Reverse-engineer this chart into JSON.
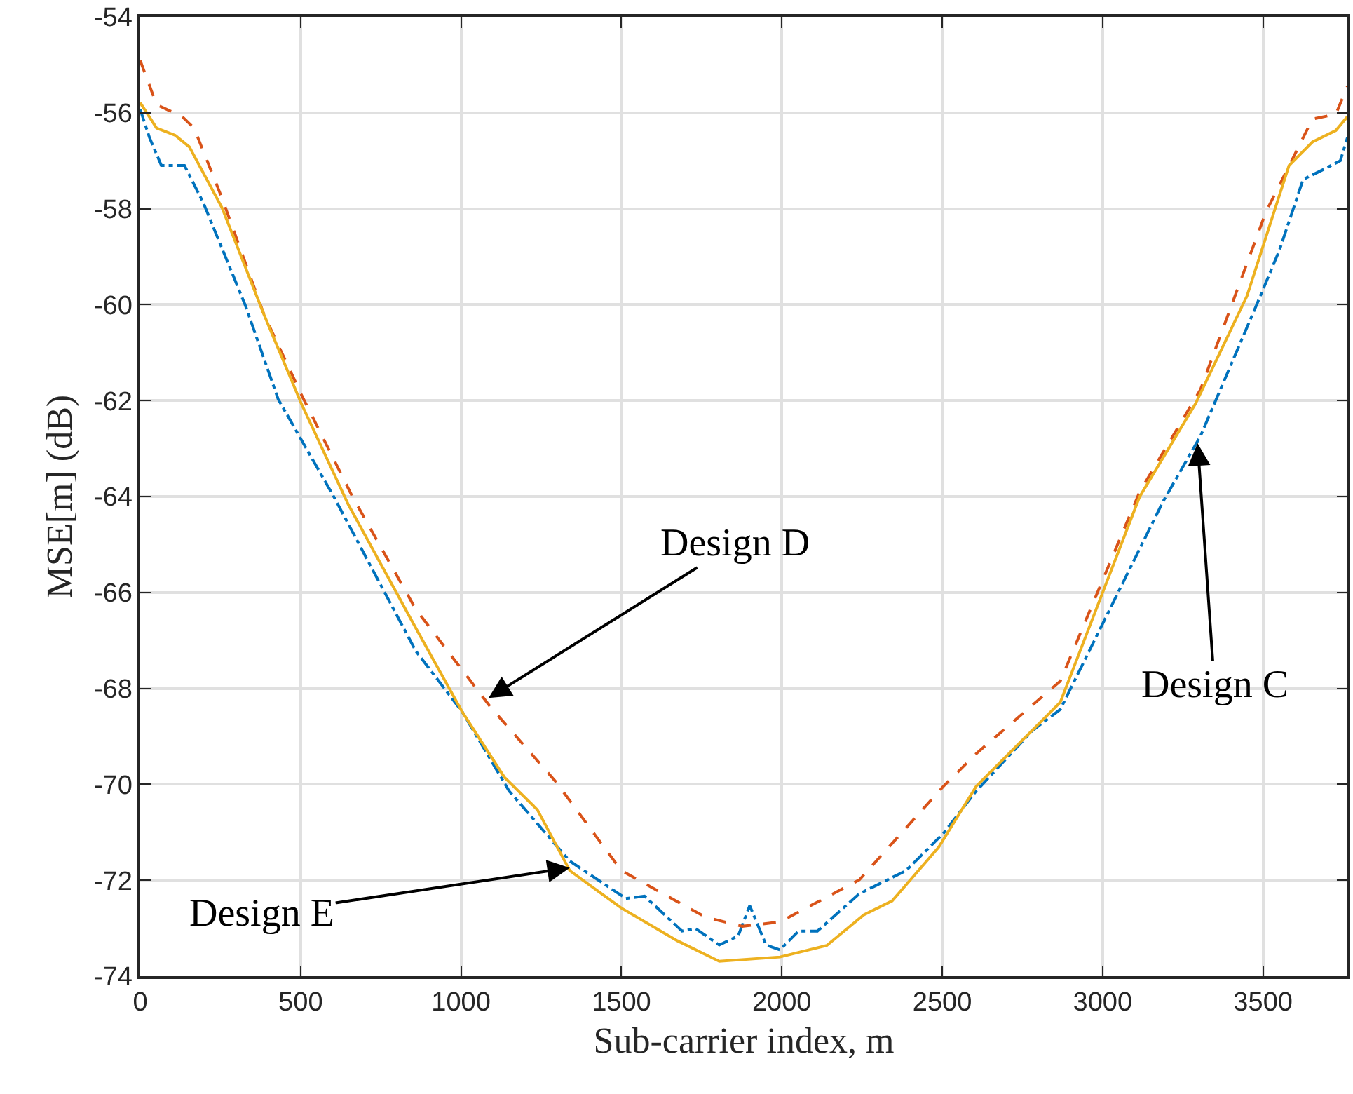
{
  "chart_data": {
    "type": "line",
    "xlabel": "Sub-carrier index, m",
    "ylabel": "MSE[m] (dB)",
    "xlim": [
      0,
      3763
    ],
    "ylim": [
      -74,
      -54
    ],
    "xticks": [
      0,
      500,
      1000,
      1500,
      2000,
      2500,
      3000,
      3500
    ],
    "yticks": [
      -74,
      -72,
      -70,
      -68,
      -66,
      -64,
      -62,
      -60,
      -58,
      -56,
      -54
    ],
    "grid": true,
    "series": [
      {
        "color": "#0072bd",
        "line_style": "dashdot",
        "x": [
          0,
          29,
          66,
          138,
          197,
          328,
          430,
          604,
          859,
          1004,
          1150,
          1339,
          1514,
          1572,
          1689,
          1732,
          1805,
          1864,
          1900,
          1951,
          1994,
          2052,
          2111,
          2242,
          2387,
          2504,
          2606,
          2781,
          2868,
          3188,
          3305,
          3479,
          3552,
          3625,
          3683,
          3741,
          3763
        ],
        "values": [
          -55.93,
          -56.52,
          -57.1,
          -57.1,
          -57.88,
          -60.02,
          -61.97,
          -64.01,
          -67.22,
          -68.49,
          -70.14,
          -71.6,
          -72.38,
          -72.33,
          -73.06,
          -73.01,
          -73.35,
          -73.16,
          -72.53,
          -73.35,
          -73.45,
          -73.06,
          -73.06,
          -72.28,
          -71.8,
          -71.02,
          -70.14,
          -68.88,
          -68.44,
          -64.11,
          -62.74,
          -60.02,
          -58.85,
          -57.39,
          -57.2,
          -57.0,
          -56.52
        ]
      },
      {
        "color": "#d95319",
        "line_style": "dashed",
        "x": [
          0,
          51,
          131,
          168,
          255,
          386,
          502,
          662,
          859,
          1092,
          1296,
          1500,
          1762,
          1877,
          1994,
          2242,
          2504,
          2606,
          2868,
          3115,
          3305,
          3509,
          3596,
          3654,
          3727,
          3763
        ],
        "values": [
          -54.91,
          -55.83,
          -56.08,
          -56.32,
          -57.78,
          -60.21,
          -61.87,
          -64.01,
          -66.35,
          -68.39,
          -69.95,
          -71.8,
          -72.77,
          -72.96,
          -72.87,
          -71.99,
          -70.04,
          -69.36,
          -67.85,
          -63.91,
          -61.77,
          -58.07,
          -56.91,
          -56.13,
          -56.03,
          -55.45
        ]
      },
      {
        "color": "#edb120",
        "line_style": "solid",
        "x": [
          0,
          51,
          109,
          153,
          255,
          386,
          502,
          648,
          859,
          1004,
          1135,
          1238,
          1339,
          1500,
          1674,
          1805,
          1994,
          2140,
          2256,
          2344,
          2489,
          2606,
          2868,
          3115,
          3290,
          3450,
          3581,
          3654,
          3727,
          3763
        ],
        "values": [
          -55.79,
          -56.32,
          -56.47,
          -56.71,
          -57.98,
          -60.21,
          -62.06,
          -64.16,
          -66.74,
          -68.49,
          -69.85,
          -70.53,
          -71.8,
          -72.58,
          -73.26,
          -73.69,
          -73.6,
          -73.36,
          -72.72,
          -72.43,
          -71.31,
          -70.04,
          -68.29,
          -64.01,
          -62.06,
          -59.82,
          -57.1,
          -56.61,
          -56.37,
          -56.08
        ]
      }
    ],
    "annotations": [
      {
        "text": "Design D",
        "x": 1086,
        "y": -68.2
      },
      {
        "text": "Design C",
        "x": 3296,
        "y": -62.89
      },
      {
        "text": "Design E",
        "x": 1339,
        "y": -71.74
      }
    ]
  }
}
